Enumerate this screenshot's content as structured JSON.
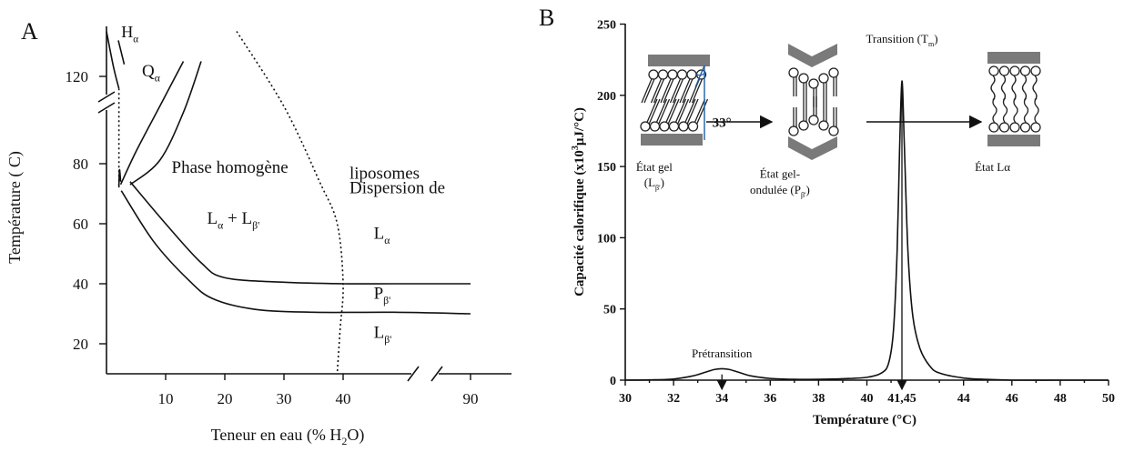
{
  "chart_data": [
    {
      "panel_label": "A",
      "type": "line",
      "xlabel_parts": [
        "Teneur en eau (% H",
        "2",
        "O)"
      ],
      "ylabel": "Température ( C)",
      "xlim": [
        0,
        100
      ],
      "ylim": [
        10,
        135
      ],
      "x_ticks": [
        10,
        20,
        30,
        40,
        90
      ],
      "y_ticks": [
        20,
        40,
        60,
        80,
        120
      ],
      "axis_breaks": [
        "y between 80 and 120",
        "x between 40 and 90"
      ],
      "grid": false,
      "regions": [
        {
          "name": "H",
          "sub": "α",
          "x": 2.5,
          "y": 133
        },
        {
          "name": "Q",
          "sub": "α",
          "x": 6,
          "y": 120
        },
        {
          "name": "Phase homogène",
          "x": 11,
          "y": 77
        },
        {
          "name": "L",
          "sub": "α",
          "mid": " + L",
          "sub2": "β'",
          "x": 17,
          "y": 60
        },
        {
          "name": "Dispersion de",
          "x": 42.5,
          "y": 81
        },
        {
          "name": "liposomes",
          "x": 42.5,
          "y": 75
        },
        {
          "name": "L",
          "sub": "α",
          "x": 52,
          "y": 55
        },
        {
          "name": "P",
          "sub": "β'",
          "x": 52,
          "y": 35
        },
        {
          "name": "L",
          "sub": "β'",
          "x": 52,
          "y": 22
        }
      ],
      "series": [
        {
          "id": "H-Q boundary",
          "x": [
            2,
            3
          ],
          "y": [
            132,
            124
          ]
        },
        {
          "id": "left boundary",
          "x": [
            0,
            1.2,
            2.1
          ],
          "y": [
            135,
            123,
            116
          ]
        },
        {
          "id": "left boundary lower",
          "x": [
            2.1,
            2.2,
            2.4
          ],
          "y": [
            83,
            78,
            74
          ]
        },
        {
          "id": "Q-homogeneous inner",
          "x": [
            2.4,
            5,
            9,
            13
          ],
          "y": [
            84,
            95,
            110,
            125
          ]
        },
        {
          "id": "Q-homogeneous outer",
          "x": [
            4,
            9,
            13,
            16
          ],
          "y": [
            73,
            92,
            108,
            125
          ]
        },
        {
          "id": "upper transition L-alpha",
          "x": [
            4,
            10,
            16,
            20,
            30,
            40,
            60,
            100
          ],
          "y": [
            74,
            60,
            47,
            42,
            40.5,
            40,
            40,
            40
          ]
        },
        {
          "id": "lower transition P-beta",
          "x": [
            2.5,
            8,
            14,
            18,
            25,
            35,
            60,
            100
          ],
          "y": [
            71,
            54,
            41,
            35,
            31.5,
            30.5,
            30.5,
            30
          ]
        },
        {
          "id": "liposome dispersion limit",
          "x": [
            22,
            30,
            36,
            39,
            40,
            39.5,
            39
          ],
          "y": [
            135,
            110,
            85,
            60,
            40,
            25,
            10
          ]
        }
      ]
    },
    {
      "panel_label": "B",
      "type": "line",
      "title": "",
      "xlabel": "Température (°C)",
      "ylabel": "Capacité calorifique (x10",
      "ylabel_sup": "3",
      "ylabel_tail": "μJ/°C)",
      "xlim": [
        30,
        50
      ],
      "ylim": [
        0,
        250
      ],
      "x_ticks": [
        "30",
        "32",
        "34",
        "36",
        "38",
        "40",
        "41,45",
        "44",
        "46",
        "48",
        "50"
      ],
      "x_tick_values": [
        30,
        32,
        34,
        36,
        38,
        40,
        41.45,
        44,
        46,
        48,
        50
      ],
      "y_ticks": [
        0,
        50,
        100,
        150,
        200,
        250
      ],
      "grid": false,
      "series": [
        {
          "name": "",
          "x": [
            30,
            31,
            32,
            32.8,
            33.3,
            33.7,
            34,
            34.3,
            34.7,
            35.2,
            36,
            37,
            38,
            39,
            40,
            40.6,
            40.9,
            41.1,
            41.25,
            41.35,
            41.45,
            41.55,
            41.7,
            41.9,
            42.2,
            42.6,
            43,
            44,
            45,
            46,
            48,
            50
          ],
          "y": [
            0,
            0.2,
            0.8,
            3,
            5.5,
            7.5,
            8,
            7.5,
            5.5,
            3,
            1.2,
            0.6,
            0.6,
            1,
            2,
            5,
            12,
            35,
            90,
            160,
            210,
            165,
            90,
            45,
            22,
            10,
            5,
            1.5,
            0.5,
            0,
            0,
            0
          ]
        }
      ],
      "annotations": [
        {
          "text": "Prétransition",
          "x": 34,
          "y": 16
        },
        {
          "text": "Transition (T",
          "sub": "m",
          "tail": ")",
          "x": 41.45,
          "y": 237
        },
        {
          "text": "État gel",
          "x": 31.2,
          "y": 147
        },
        {
          "text": "(L",
          "sub": "β'",
          "tail": ")",
          "x": 31.2,
          "y": 136
        },
        {
          "text": "État gel-",
          "x": 36.4,
          "y": 142
        },
        {
          "text": "ondulée (P",
          "sub": "β'",
          "tail": ")",
          "x": 36.4,
          "y": 131
        },
        {
          "text": "État Lα",
          "x": 45.2,
          "y": 147
        },
        {
          "text": "33°",
          "x": 33.6,
          "y": 178,
          "color": "#d8232a"
        }
      ],
      "markers": [
        {
          "x": 34,
          "label": "34"
        },
        {
          "x": 41.45,
          "label": "41,45"
        }
      ]
    }
  ],
  "colors": {
    "ink": "#111111",
    "angle_label": "#d8232a",
    "angle_line": "#1f5fa8",
    "bilayer_band": "#7a7a7a"
  }
}
